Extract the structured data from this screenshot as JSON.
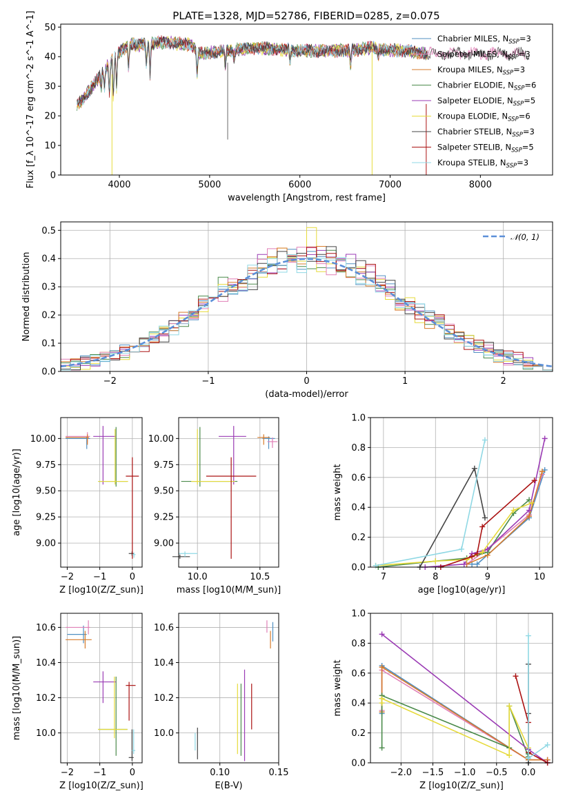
{
  "figure": {
    "title": "PLATE=1328, MJD=52786, FIBERID=0285, z=0.075"
  },
  "series_colors": [
    "#4f8fc2",
    "#e07fb6",
    "#d77b2a",
    "#4a8a4a",
    "#9a3ab4",
    "#e6da3a",
    "#444444",
    "#aa1111",
    "#8fd8e4"
  ],
  "legend": [
    "Chabrier MILES, N_SSP=3",
    "Salpeter MILES, N_SSP=3",
    "Kroupa MILES, N_SSP=3",
    "Chabrier ELODIE, N_SSP=6",
    "Salpeter ELODIE, N_SSP=5",
    "Kroupa ELODIE, N_SSP=6",
    "Chabrier STELIB, N_SSP=3",
    "Salpeter STELIB, N_SSP=5",
    "Kroupa STELIB, N_SSP=3"
  ],
  "chart_data": [
    {
      "id": "spectrum",
      "type": "line",
      "title": "PLATE=1328, MJD=52786, FIBERID=0285, z=0.075",
      "xlabel": "wavelength [Angstrom, rest frame]",
      "ylabel": "Flux [f_λ 10^-17 erg cm^-2 s^-1 A^-1]",
      "xlim": [
        3350,
        8800
      ],
      "ylim": [
        0,
        51
      ],
      "xticks": [
        4000,
        5000,
        6000,
        7000,
        8000
      ],
      "yticks": [
        0,
        10,
        20,
        30,
        40,
        50
      ],
      "grid": false,
      "legend_position": "right",
      "series": [
        {
          "name": "Chabrier MILES, N_SSP=3"
        },
        {
          "name": "Salpeter MILES, N_SSP=3"
        },
        {
          "name": "Kroupa MILES, N_SSP=3"
        },
        {
          "name": "Chabrier ELODIE, N_SSP=6"
        },
        {
          "name": "Salpeter ELODIE, N_SSP=5"
        },
        {
          "name": "Kroupa ELODIE, N_SSP=6"
        },
        {
          "name": "Chabrier STELIB, N_SSP=3"
        },
        {
          "name": "Salpeter STELIB, N_SSP=5"
        },
        {
          "name": "Kroupa STELIB, N_SSP=3"
        }
      ],
      "continuum": {
        "x": [
          3550,
          3700,
          3850,
          3950,
          4100,
          4300,
          4500,
          4800,
          4900,
          5200,
          5500,
          6000,
          6500,
          6800,
          7000,
          7200,
          7400
        ],
        "y": [
          24,
          30,
          36,
          40,
          44,
          44,
          45,
          44,
          41,
          42,
          43,
          42,
          42,
          43,
          42,
          42,
          41
        ]
      }
    },
    {
      "id": "residuals",
      "type": "line",
      "xlabel": "(data-model)/error",
      "ylabel": "Normed distribution",
      "xlim": [
        -2.5,
        2.5
      ],
      "ylim": [
        0,
        0.53
      ],
      "xticks": [
        -2,
        -1,
        0,
        1,
        2
      ],
      "yticks": [
        0.0,
        0.1,
        0.2,
        0.3,
        0.4,
        0.5
      ],
      "grid": true,
      "legend_position": "top-right",
      "reference": {
        "name": "N(0,1)",
        "mean": 0,
        "sigma": 1
      }
    },
    {
      "id": "age-vs-Z",
      "type": "scatter",
      "xlabel": "Z [log10(Z/Z_sun)]",
      "ylabel": "age [log10(age/yr)]",
      "xlim": [
        -2.2,
        0.3
      ],
      "ylim": [
        8.77,
        10.2
      ],
      "xticks": [
        -2,
        -1,
        0
      ],
      "yticks": [
        9.0,
        9.25,
        9.5,
        9.75,
        10.0
      ],
      "grid": true,
      "points": [
        {
          "x": -1.4,
          "y": 10.0,
          "xerr": [
            0.65,
            0.1
          ],
          "yerr": [
            0.1,
            0.02
          ]
        },
        {
          "x": -1.38,
          "y": 10.02,
          "xerr": [
            0.67,
            0.08
          ],
          "yerr": [
            0.06,
            0.04
          ]
        },
        {
          "x": -1.38,
          "y": 10.01,
          "xerr": [
            0.67,
            0.05
          ],
          "yerr": [
            0.07,
            0.03
          ]
        },
        {
          "x": -0.5,
          "y": 9.59,
          "xerr": [
            0.55,
            0.35
          ],
          "yerr": [
            0.05,
            0.52
          ]
        },
        {
          "x": -0.9,
          "y": 10.02,
          "xerr": [
            0.3,
            0.4
          ],
          "yerr": [
            0.46,
            0.1
          ]
        },
        {
          "x": -0.53,
          "y": 9.59,
          "xerr": [
            0.52,
            0.4
          ],
          "yerr": [
            0.03,
            0.5
          ]
        },
        {
          "x": -0.01,
          "y": 8.9,
          "xerr": [
            0.1,
            0.05
          ],
          "yerr": [
            0.02,
            0.02
          ]
        },
        {
          "x": 0.0,
          "y": 9.64,
          "xerr": [
            0.2,
            0.2
          ],
          "yerr": [
            0.79,
            0.18
          ]
        },
        {
          "x": 0.05,
          "y": 8.89,
          "xerr": [
            0.05,
            0.05
          ],
          "yerr": [
            0.03,
            0.02
          ]
        }
      ]
    },
    {
      "id": "age-vs-mass",
      "type": "scatter",
      "xlabel": "mass [log10(M/M_sun)]",
      "ylabel": "",
      "xlim": [
        9.85,
        10.65
      ],
      "ylim": [
        8.77,
        10.2
      ],
      "xticks": [
        10.0,
        10.5
      ],
      "yticks": [
        9.0,
        9.25,
        9.5,
        9.75,
        10.0
      ],
      "grid": true,
      "points": [
        {
          "x": 10.57,
          "y": 10.0,
          "xerr": [
            0.05,
            0.05
          ],
          "yerr": [
            0.1,
            0.02
          ]
        },
        {
          "x": 10.6,
          "y": 9.97,
          "xerr": [
            0.04,
            0.04
          ],
          "yerr": [
            0.06,
            0.04
          ]
        },
        {
          "x": 10.53,
          "y": 10.01,
          "xerr": [
            0.05,
            0.05
          ],
          "yerr": [
            0.07,
            0.03
          ]
        },
        {
          "x": 10.02,
          "y": 9.59,
          "xerr": [
            0.15,
            0.3
          ],
          "yerr": [
            0.05,
            0.52
          ]
        },
        {
          "x": 10.29,
          "y": 10.02,
          "xerr": [
            0.12,
            0.1
          ],
          "yerr": [
            0.46,
            0.1
          ]
        },
        {
          "x": 10.0,
          "y": 9.59,
          "xerr": [
            0.05,
            0.3
          ],
          "yerr": [
            0.03,
            0.5
          ]
        },
        {
          "x": 9.86,
          "y": 8.87,
          "xerr": [
            0.06,
            0.08
          ],
          "yerr": [
            0.02,
            0.02
          ]
        },
        {
          "x": 10.27,
          "y": 9.64,
          "xerr": [
            0.2,
            0.2
          ],
          "yerr": [
            0.79,
            0.18
          ]
        },
        {
          "x": 9.9,
          "y": 8.9,
          "xerr": [
            0.05,
            0.1
          ],
          "yerr": [
            0.03,
            0.02
          ]
        }
      ]
    },
    {
      "id": "weight-vs-age",
      "type": "line",
      "xlabel": "age [log10(age/yr)]",
      "ylabel": "mass weight",
      "xlim": [
        6.75,
        10.25
      ],
      "ylim": [
        0,
        1.0
      ],
      "xticks": [
        7,
        8,
        9,
        10
      ],
      "yticks": [
        0.0,
        0.2,
        0.4,
        0.6,
        0.8,
        1.0
      ],
      "grid": true,
      "series": [
        {
          "x": [
            8.7,
            8.8,
            9.8,
            10.1
          ],
          "y": [
            0.02,
            0.02,
            0.33,
            0.65
          ]
        },
        {
          "x": [
            8.6,
            9.0,
            9.8,
            10.05
          ],
          "y": [
            0.02,
            0.12,
            0.35,
            0.62
          ]
        },
        {
          "x": [
            8.6,
            9.0,
            9.8,
            10.05
          ],
          "y": [
            0.02,
            0.08,
            0.34,
            0.64
          ]
        },
        {
          "x": [
            6.9,
            8.0,
            8.6,
            9.0,
            9.5,
            9.8
          ],
          "y": [
            0.0,
            0.04,
            0.06,
            0.1,
            0.36,
            0.45
          ]
        },
        {
          "x": [
            7.8,
            8.55,
            8.7,
            9.0,
            9.8,
            10.1
          ],
          "y": [
            0.0,
            0.02,
            0.09,
            0.12,
            0.38,
            0.86
          ]
        },
        {
          "x": [
            6.85,
            8.0,
            8.6,
            8.9,
            9.5,
            9.85
          ],
          "y": [
            0.01,
            0.04,
            0.05,
            0.1,
            0.38,
            0.43
          ]
        },
        {
          "x": [
            7.7,
            8.75,
            8.95
          ],
          "y": [
            0.0,
            0.66,
            0.33
          ]
        },
        {
          "x": [
            8.1,
            8.7,
            8.8,
            8.9,
            9.9
          ],
          "y": [
            0.0,
            0.07,
            0.09,
            0.27,
            0.58
          ]
        },
        {
          "x": [
            6.85,
            8.5,
            8.95
          ],
          "y": [
            0.01,
            0.12,
            0.85
          ]
        }
      ]
    },
    {
      "id": "mass-vs-Z",
      "type": "scatter",
      "xlabel": "Z [log10(Z/Z_sun)]",
      "ylabel": "mass [log10(M/M_sun)]",
      "xlim": [
        -2.2,
        0.3
      ],
      "ylim": [
        9.83,
        10.68
      ],
      "xticks": [
        -2,
        -1,
        0
      ],
      "yticks": [
        10.0,
        10.2,
        10.4,
        10.6
      ],
      "grid": true,
      "points": [
        {
          "x": -1.5,
          "y": 10.56,
          "xerr": [
            0.5,
            0.1
          ],
          "yerr": [
            0.05,
            0.05
          ]
        },
        {
          "x": -1.35,
          "y": 10.6,
          "xerr": [
            0.7,
            0.05
          ],
          "yerr": [
            0.04,
            0.04
          ]
        },
        {
          "x": -1.45,
          "y": 10.53,
          "xerr": [
            0.6,
            0.2
          ],
          "yerr": [
            0.05,
            0.05
          ]
        },
        {
          "x": -0.5,
          "y": 10.02,
          "xerr": [
            0.55,
            0.35
          ],
          "yerr": [
            0.15,
            0.3
          ]
        },
        {
          "x": -0.9,
          "y": 10.29,
          "xerr": [
            0.3,
            0.4
          ],
          "yerr": [
            0.12,
            0.06
          ]
        },
        {
          "x": -0.55,
          "y": 10.02,
          "xerr": [
            0.5,
            0.4
          ],
          "yerr": [
            0.05,
            0.3
          ]
        },
        {
          "x": -0.01,
          "y": 9.86,
          "xerr": [
            0.1,
            0.05
          ],
          "yerr": [
            0.02,
            0.16
          ]
        },
        {
          "x": -0.1,
          "y": 10.27,
          "xerr": [
            0.1,
            0.2
          ],
          "yerr": [
            0.2,
            0.02
          ]
        },
        {
          "x": 0.04,
          "y": 9.9,
          "xerr": [
            0.05,
            0.05
          ],
          "yerr": [
            0.02,
            0.12
          ]
        }
      ]
    },
    {
      "id": "mass-vs-ebv",
      "type": "scatter",
      "xlabel": "E(B-V)",
      "ylabel": "",
      "xlim": [
        0.065,
        0.15
      ],
      "ylim": [
        9.83,
        10.68
      ],
      "xticks": [
        0.1,
        0.15
      ],
      "yticks": [
        10.0,
        10.2,
        10.4,
        10.6
      ],
      "grid": true,
      "points": [
        {
          "x": 0.145,
          "y": 10.58,
          "yerr": [
            0.06,
            0.05
          ]
        },
        {
          "x": 0.14,
          "y": 10.61,
          "yerr": [
            0.04,
            0.03
          ]
        },
        {
          "x": 0.143,
          "y": 10.53,
          "yerr": [
            0.05,
            0.05
          ]
        },
        {
          "x": 0.118,
          "y": 10.02,
          "yerr": [
            0.15,
            0.26
          ]
        },
        {
          "x": 0.121,
          "y": 10.06,
          "yerr": [
            0.22,
            0.3
          ]
        },
        {
          "x": 0.115,
          "y": 10.0,
          "yerr": [
            0.12,
            0.28
          ]
        },
        {
          "x": 0.081,
          "y": 9.95,
          "yerr": [
            0.1,
            0.08
          ]
        },
        {
          "x": 0.127,
          "y": 10.15,
          "yerr": [
            0.13,
            0.13
          ]
        },
        {
          "x": 0.079,
          "y": 9.95,
          "yerr": [
            0.05,
            0.05
          ]
        }
      ]
    },
    {
      "id": "weight-vs-Z",
      "type": "line",
      "xlabel": "Z [log10(Z/Z_sun)]",
      "ylabel": "mass weight",
      "xlim": [
        -2.48,
        0.38
      ],
      "ylim": [
        0,
        1.0
      ],
      "xticks": [
        -2.0,
        -1.5,
        -1.0,
        -0.5,
        0.0
      ],
      "yticks": [
        0.0,
        0.2,
        0.4,
        0.6,
        0.8,
        1.0
      ],
      "grid": true,
      "series": [
        {
          "x": [
            -2.3,
            -2.3,
            0.0,
            0.3
          ],
          "y": [
            0.33,
            0.65,
            0.02,
            0.02
          ]
        },
        {
          "x": [
            -2.3,
            -2.3,
            0.0,
            0.3
          ],
          "y": [
            0.35,
            0.62,
            0.02,
            0.02
          ]
        },
        {
          "x": [
            -2.3,
            -2.3,
            0.0,
            0.3
          ],
          "y": [
            0.34,
            0.64,
            0.02,
            0.02
          ]
        },
        {
          "x": [
            -2.3,
            -2.3,
            -0.3,
            -0.3,
            0.0,
            0.0
          ],
          "y": [
            0.1,
            0.45,
            0.1,
            0.38,
            0.04,
            0.06
          ]
        },
        {
          "x": [
            -2.3,
            0.0,
            0.3
          ],
          "y": [
            0.86,
            0.09,
            0.0
          ]
        },
        {
          "x": [
            -2.3,
            -2.3,
            -0.3,
            -0.3,
            0.0
          ],
          "y": [
            0.4,
            0.43,
            0.05,
            0.38,
            0.1
          ]
        },
        {
          "x": [
            0.0,
            0.0,
            0.0
          ],
          "y": [
            0.66,
            0.33,
            0.0
          ]
        },
        {
          "x": [
            -0.2,
            0.0,
            0.0,
            0.3
          ],
          "y": [
            0.58,
            0.27,
            0.07,
            0.0
          ]
        },
        {
          "x": [
            0.0,
            0.0,
            0.3
          ],
          "y": [
            0.85,
            0.03,
            0.12
          ]
        }
      ]
    }
  ]
}
